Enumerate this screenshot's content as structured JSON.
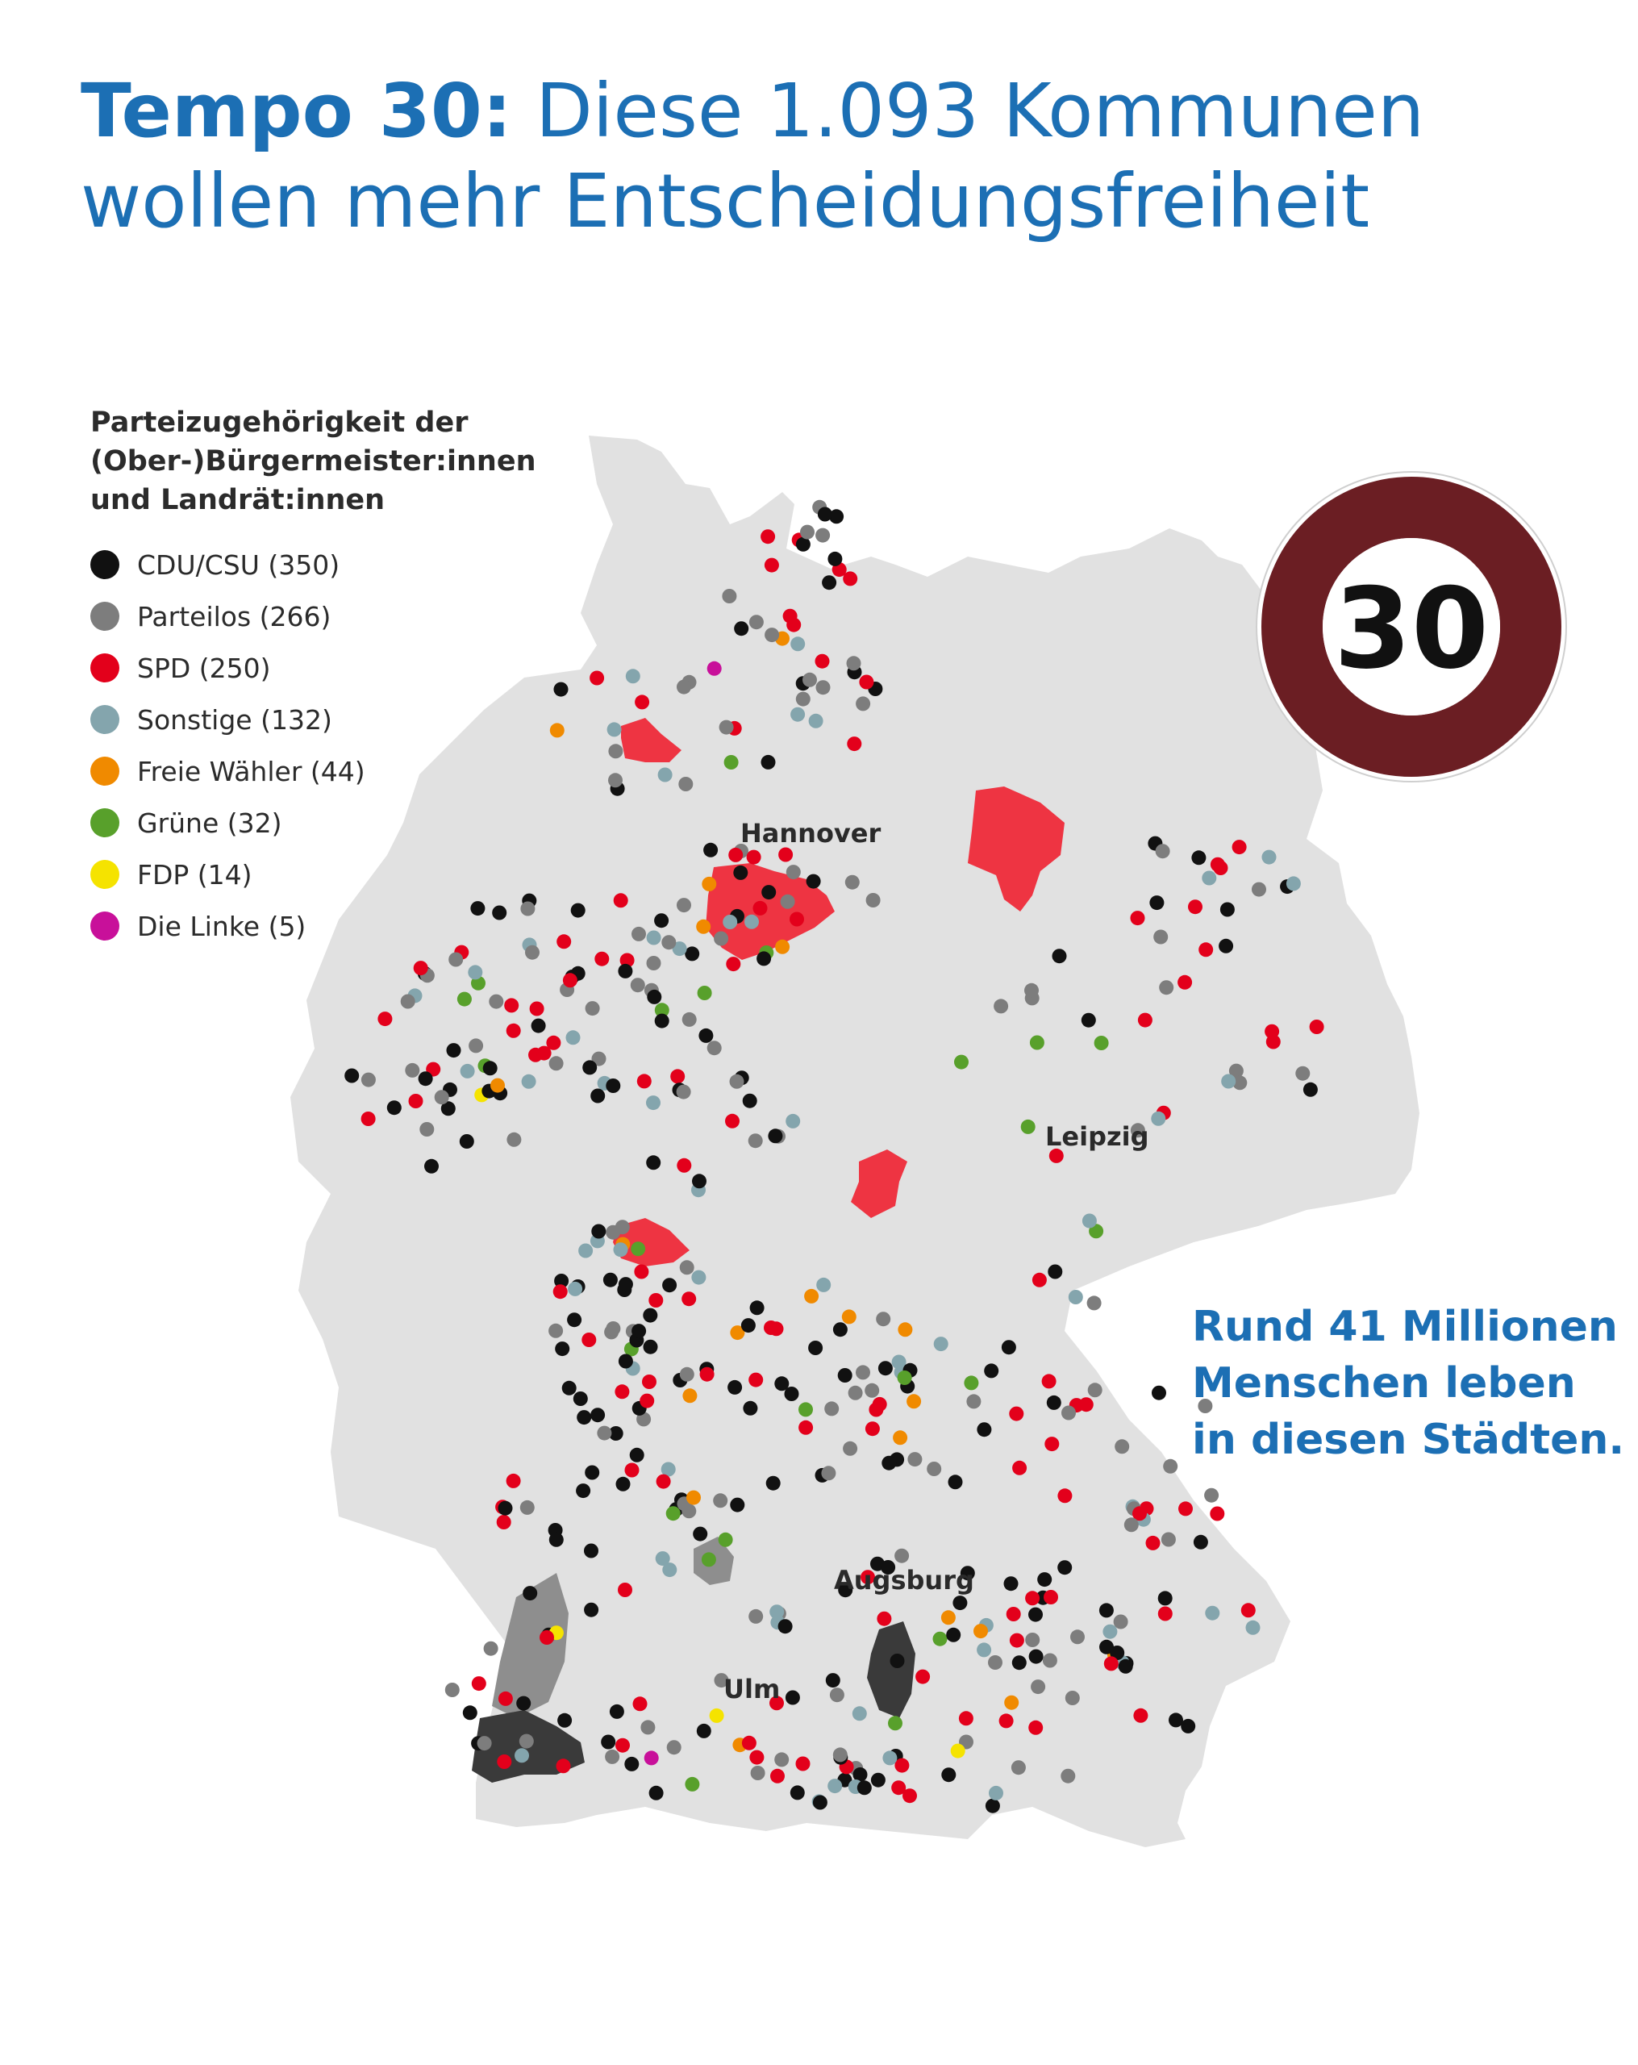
{
  "title": {
    "bold": "Tempo 30:",
    "rest": " Diese 1.093 Kommunen wollen mehr Entscheidungsfreiheit"
  },
  "legend": {
    "title": "Parteizugehörigkeit der (Ober-)Bürgermeister:innen und Landrät:innen",
    "items": [
      {
        "key": "cdu",
        "label": "CDU/CSU (350)",
        "color": "#111111"
      },
      {
        "key": "pl",
        "label": "Parteilos (266)",
        "color": "#7d7d7d"
      },
      {
        "key": "spd",
        "label": "SPD (250)",
        "color": "#e3001b"
      },
      {
        "key": "so",
        "label": "Sonstige (132)",
        "color": "#84a5ad"
      },
      {
        "key": "fw",
        "label": "Freie Wähler (44)",
        "color": "#f08a00"
      },
      {
        "key": "gr",
        "label": "Grüne (32)",
        "color": "#58a02b"
      },
      {
        "key": "fdp",
        "label": "FDP (14)",
        "color": "#f5e300"
      },
      {
        "key": "linke",
        "label": "Die Linke (5)",
        "color": "#c8109a"
      }
    ]
  },
  "cities": [
    "Hannover",
    "Leipzig",
    "Augsburg",
    "Ulm"
  ],
  "sign": {
    "number": "30",
    "ring_color": "#6b1e23"
  },
  "note": "Rund 41 Millionen Menschen leben in diesen Städten.",
  "map": {
    "country_fill": "#e1e1e1",
    "highlight_spd": "#ee3442",
    "highlight_pl": "#8e8e8e",
    "highlight_cdu": "#3a3a3a"
  }
}
